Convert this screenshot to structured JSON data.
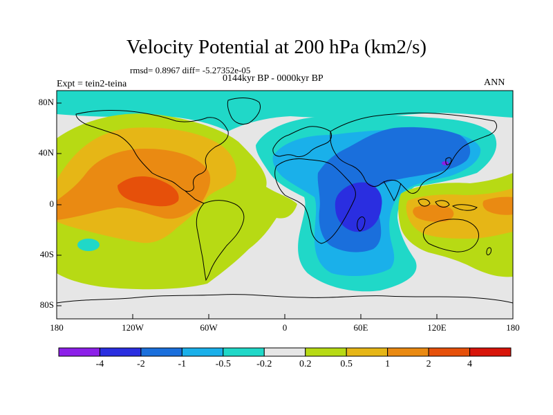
{
  "title": "Velocity Potential at 200 hPa (km2/s)",
  "subtitle_stats": "rmsd= 0.8967 diff= -5.27352e-05",
  "subtitle_period": "0144kyr BP - 0000kyr BP",
  "experiment": "Expt = tein2-teina",
  "season": "ANN",
  "map": {
    "lon_range": [
      -180,
      180
    ],
    "lat_range": [
      -90,
      90
    ],
    "x_ticks": [
      "180",
      "120W",
      "60W",
      "0",
      "60E",
      "120E",
      "180"
    ],
    "y_ticks": [
      "80N",
      "40N",
      "0",
      "40S",
      "80S"
    ],
    "projection": "cylindrical equidistant"
  },
  "colorbar": {
    "labels": [
      "-4",
      "-2",
      "-1",
      "-0.5",
      "-0.2",
      "0.2",
      "0.5",
      "1",
      "2",
      "4"
    ],
    "colors": [
      "#8c1fe8",
      "#2a2ee0",
      "#1a6fdc",
      "#1ab0ea",
      "#20d8c8",
      "#e6e6e6",
      "#b7da14",
      "#e6b616",
      "#ea8a12",
      "#e6500a",
      "#d8150a"
    ]
  },
  "field_colors": {
    "bg": "#e6e6e6",
    "pos1": "#b7da14",
    "pos2": "#e6b616",
    "pos3": "#ea8a12",
    "pos4": "#e6500a",
    "neg1": "#20d8c8",
    "neg2": "#1ab0ea",
    "neg3": "#1a6fdc",
    "neg4": "#2a2ee0",
    "neg5": "#8c1fe8"
  }
}
